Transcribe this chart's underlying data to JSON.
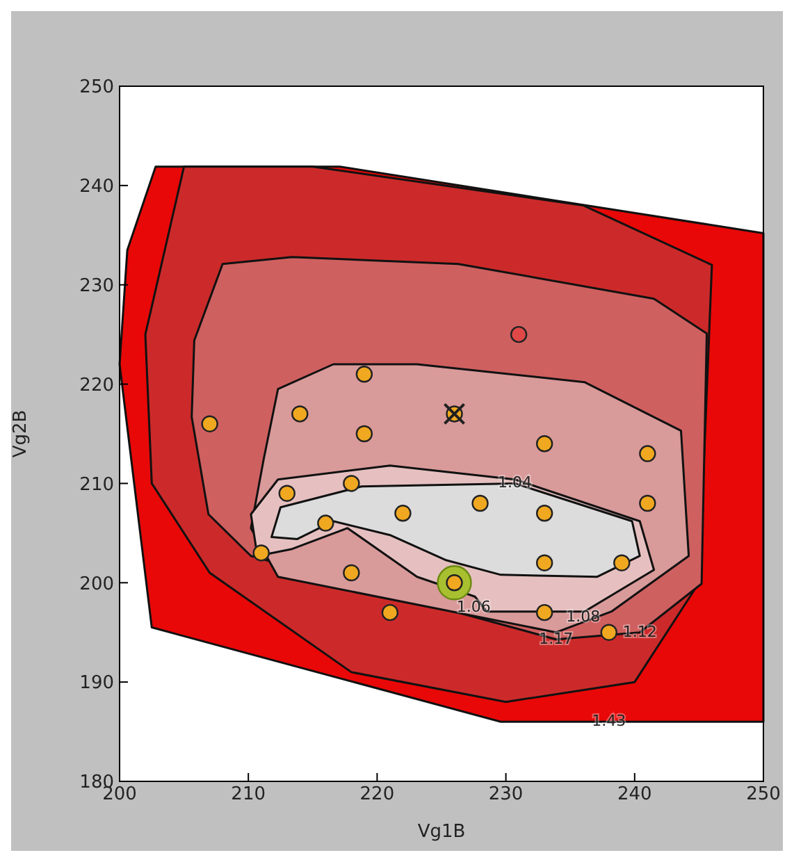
{
  "chart_data": {
    "type": "scatter",
    "xlabel": "Vg1B",
    "ylabel": "Vg2B",
    "xlim": [
      200,
      250
    ],
    "ylim": [
      180,
      250
    ],
    "xticks": [
      200,
      210,
      220,
      230,
      240,
      250
    ],
    "yticks": [
      180,
      190,
      200,
      210,
      220,
      230,
      240,
      250
    ],
    "legend": false,
    "series": [
      {
        "type": "area",
        "color": "#e80808",
        "x": [
          202.8,
          217.1,
          250,
          250,
          238,
          229.6,
          202.5,
          200,
          200.6,
          202.8
        ],
        "values": [
          241.9,
          241.9,
          235.2,
          186,
          186,
          186,
          195.5,
          222,
          233.5,
          241.9
        ]
      },
      {
        "type": "area",
        "color": "#cc2a2a",
        "x": [
          205,
          215,
          236,
          246,
          245,
          240,
          230,
          218,
          207,
          202.5,
          202,
          205
        ],
        "values": [
          241.9,
          241.9,
          238,
          232,
          200,
          190,
          188,
          191,
          201,
          210,
          225,
          241.9
        ]
      },
      {
        "type": "area",
        "color": "#cf6060",
        "x": [
          205.8,
          208,
          213.4,
          226.3,
          241.5,
          245.6,
          245.2,
          240.4,
          233.9,
          210.2,
          206.9,
          205.6,
          205.8
        ],
        "values": [
          224.4,
          232.1,
          232.8,
          232.1,
          228.6,
          225.1,
          199.9,
          195,
          194.3,
          202.7,
          206.9,
          216.7,
          224.4
        ]
      },
      {
        "type": "area",
        "color": "#d99a9a",
        "x": [
          211.2,
          212.3,
          216.6,
          223.1,
          236.1,
          243.6,
          244.2,
          238.2,
          233.9,
          223.1,
          212.3,
          210.2,
          211.2
        ],
        "values": [
          212.5,
          219.5,
          222,
          222,
          220.2,
          215.3,
          202.7,
          197.1,
          195,
          197.8,
          200.6,
          205.5,
          212.5
        ]
      },
      {
        "type": "area",
        "color": "#e6c0c0",
        "x": [
          210.2,
          212.3,
          221,
          230.7,
          240.4,
          241.5,
          236.1,
          228.5,
          227.6,
          223.1,
          217.7,
          213.4,
          210.7,
          210.2
        ],
        "values": [
          206.9,
          210.4,
          211.8,
          210.4,
          206.2,
          201.3,
          197.1,
          197.1,
          198.6,
          200.6,
          205.5,
          203.4,
          202.7,
          206.9
        ]
      },
      {
        "type": "area",
        "color": "#dcdcdc",
        "x": [
          211.8,
          212.5,
          218.8,
          230.7,
          239.8,
          240.4,
          237.1,
          229.6,
          225.3,
          221,
          216.6,
          213.8,
          211.8
        ],
        "values": [
          204.6,
          207.6,
          209.7,
          210,
          206.2,
          202.7,
          200.6,
          200.8,
          202.3,
          204.8,
          206.2,
          204.4,
          204.6
        ]
      },
      {
        "color": "#a8c030",
        "marker": "circle",
        "x": [
          226
        ],
        "values": [
          200
        ]
      },
      {
        "color": "#f0a820",
        "marker": "circle",
        "x": [
          207,
          214,
          219,
          219,
          226,
          233,
          241,
          213,
          218,
          216,
          222,
          228,
          233,
          241,
          211,
          218,
          221,
          226,
          233,
          233,
          239,
          238
        ],
        "values": [
          216,
          217,
          221,
          215,
          217,
          214,
          213,
          209,
          210,
          206,
          207,
          208,
          207,
          208,
          203,
          201,
          197,
          200,
          202,
          197,
          202,
          195
        ]
      },
      {
        "color": "#e04848",
        "marker": "circle",
        "x": [
          231
        ],
        "values": [
          225
        ]
      },
      {
        "color": "#202020",
        "marker": "cross",
        "x": [
          226
        ],
        "values": [
          217
        ]
      }
    ],
    "annotations": [
      {
        "text": "1.04",
        "x": 230.7,
        "y": 210
      },
      {
        "text": "1.06",
        "x": 227.5,
        "y": 197.5
      },
      {
        "text": "1.08",
        "x": 236,
        "y": 196.5
      },
      {
        "text": "1.12",
        "x": 240.4,
        "y": 195
      },
      {
        "text": "1.17",
        "x": 233.9,
        "y": 194.3
      },
      {
        "text": "1.43",
        "x": 238,
        "y": 186
      }
    ]
  }
}
